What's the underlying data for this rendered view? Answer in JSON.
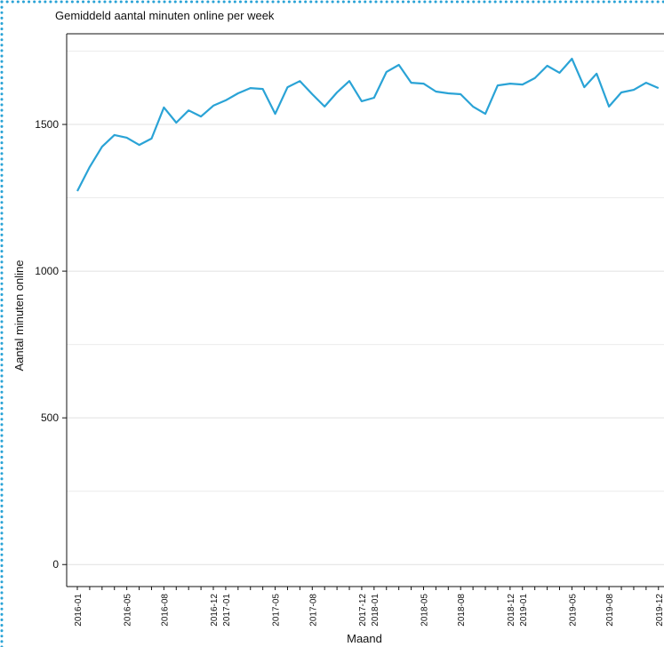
{
  "chart_data": {
    "type": "line",
    "title": "Gemiddeld aantal minuten online per week",
    "x_label": "Maand",
    "y_label": "Aantal minuten online",
    "categories": [
      "2016-01",
      null,
      null,
      null,
      "2016-05",
      null,
      null,
      "2016-08",
      null,
      null,
      null,
      "2016-12",
      "2017-01",
      null,
      null,
      null,
      "2017-05",
      null,
      null,
      "2017-08",
      null,
      null,
      null,
      "2017-12",
      "2018-01",
      null,
      null,
      null,
      "2018-05",
      null,
      null,
      "2018-08",
      null,
      null,
      null,
      "2018-12",
      "2019-01",
      null,
      null,
      null,
      "2019-05",
      null,
      null,
      "2019-08",
      null,
      null,
      null,
      "2019-12"
    ],
    "series": [
      {
        "name": "Aantal minuten online",
        "color": "#2aa3d6",
        "values": [
          1273,
          1355,
          1424,
          1464,
          1455,
          1430,
          1452,
          1558,
          1506,
          1548,
          1527,
          1564,
          1582,
          1606,
          1624,
          1621,
          1536,
          1627,
          1648,
          1603,
          1561,
          1609,
          1648,
          1579,
          1591,
          1679,
          1703,
          1642,
          1639,
          1612,
          1606,
          1603,
          1561,
          1536,
          1633,
          1639,
          1636,
          1658,
          1700,
          1676,
          1724,
          1627,
          1673,
          1561,
          1609,
          1618,
          1642,
          1624
        ]
      }
    ],
    "ylim": [
      -75,
      1809
    ],
    "yticks": [
      0,
      500,
      1000,
      1500
    ],
    "minor_yticks": [
      250,
      750,
      1250,
      1750
    ],
    "grid": true
  }
}
